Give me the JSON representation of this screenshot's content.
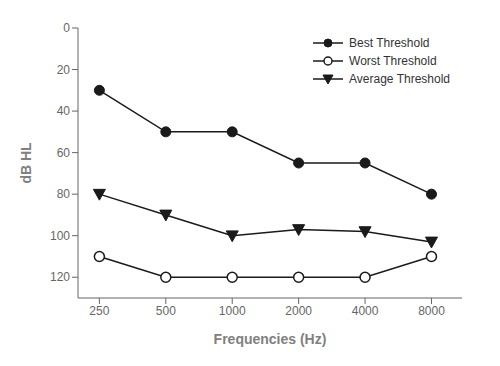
{
  "chart_data": {
    "type": "line",
    "x": [
      250,
      500,
      1000,
      2000,
      4000,
      8000
    ],
    "series": [
      {
        "name": "Best Threshold",
        "color": "#1a1a1a",
        "marker": "filled_circle",
        "values": [
          30,
          50,
          50,
          65,
          65,
          80
        ]
      },
      {
        "name": "Worst Threshold",
        "color": "#1a1a1a",
        "marker": "open_circle",
        "values": [
          110,
          120,
          120,
          120,
          120,
          110
        ]
      },
      {
        "name": "Average Threshold",
        "color": "#1a1a1a",
        "marker": "triangle_down",
        "values": [
          80,
          90,
          100,
          97,
          98,
          103
        ]
      }
    ],
    "xlabel": "Frequencies (Hz)",
    "ylabel": "dB HL",
    "log": "x",
    "xlim": [
      200,
      11000
    ],
    "xticks": [
      250,
      500,
      1000,
      2000,
      4000,
      8000
    ],
    "ylim": [
      130,
      0
    ],
    "yticks": [
      0,
      20,
      40,
      60,
      80,
      100,
      120
    ],
    "legend": "upper right",
    "grid": false
  }
}
